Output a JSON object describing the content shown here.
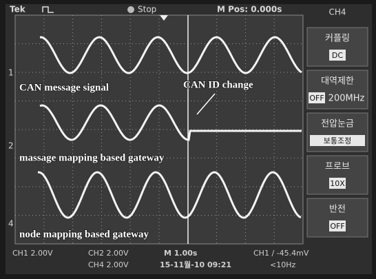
{
  "header": {
    "brand": "Tek",
    "state": "Stop",
    "position": "M Pos: 0.000s",
    "channel": "CH4"
  },
  "menu": [
    {
      "title": "커플링",
      "value": "DC"
    },
    {
      "title": "대역제한",
      "value": "OFF",
      "extra": "200MHz"
    },
    {
      "title": "전압눈금",
      "value": "보통조정"
    },
    {
      "title": "프로브",
      "value": "10X"
    },
    {
      "title": "반전",
      "value": "OFF"
    }
  ],
  "markers": [
    "1",
    "2",
    "4"
  ],
  "annotations": {
    "signal": "CAN message signal",
    "change": "CAN ID change",
    "message_gateway": "massage mapping based gateway",
    "node_gateway": "node mapping based gateway"
  },
  "footer": {
    "ch1": "CH1 2.00V",
    "ch2": "CH2 2.00V",
    "timebase": "M 1.00s",
    "trigger": "CH1 ∕ -45.4mV",
    "ch4": "CH4 2.00V",
    "date": "15-11월-10 09:21",
    "freq": "<10Hz"
  }
}
